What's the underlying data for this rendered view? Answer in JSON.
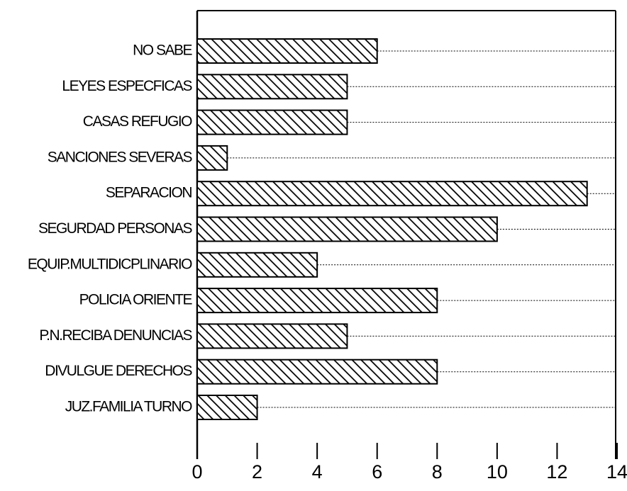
{
  "chart_data": {
    "type": "barh",
    "categories": [
      "NO SABE",
      "LEYES ESPECFICAS",
      "CASAS REFUGIO",
      "SANCIONES SEVERAS",
      "SEPARACION",
      "SEGURDAD PERSONAS",
      "EQUIP.MULTIDICPLINARIO",
      "POLICIA ORIENTE",
      "P.N.RECIBA DENUNCIAS",
      "DIVULGUE DERECHOS",
      "JUZ.FAMILIA TURNO"
    ],
    "values": [
      6,
      5,
      5,
      1,
      13,
      10,
      4,
      8,
      5,
      8,
      2
    ],
    "color": "#000000",
    "xlim": [
      0,
      14
    ],
    "xticks": [
      0,
      2,
      4,
      6,
      8,
      10,
      12,
      14
    ],
    "grid": true
  }
}
